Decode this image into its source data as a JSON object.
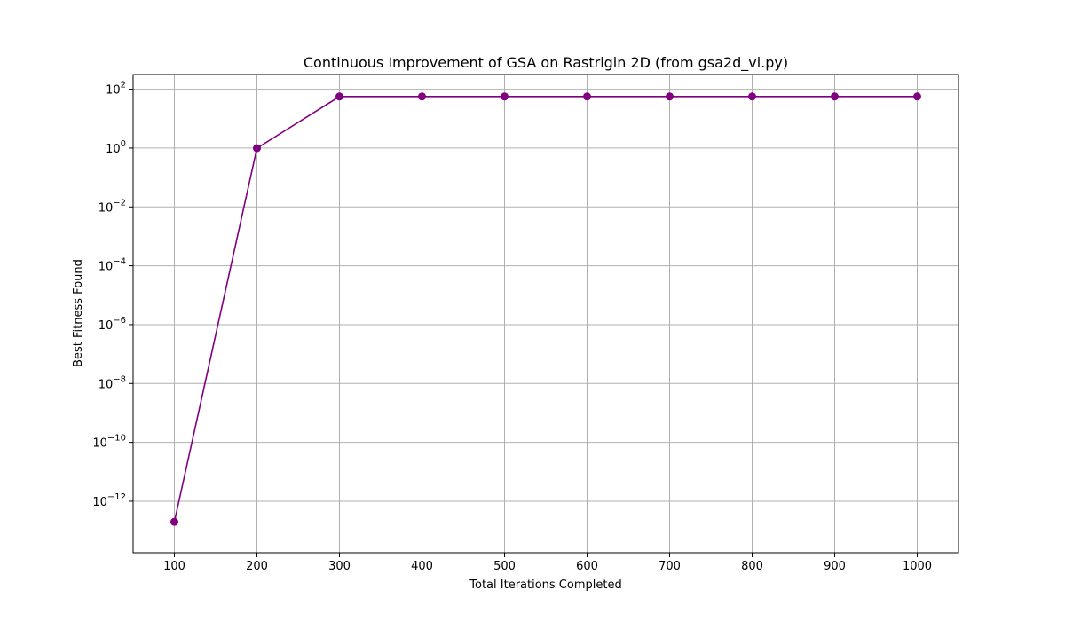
{
  "chart_data": {
    "type": "line",
    "title": "Continuous Improvement of GSA on Rastrigin 2D (from gsa2d_vi.py)",
    "xlabel": "Total Iterations Completed",
    "ylabel": "Best Fitness Found",
    "yscale": "log",
    "xlim": [
      50,
      1050
    ],
    "ylim_exponent": [
      -13.75,
      2.5
    ],
    "grid": true,
    "x_ticks": [
      100,
      200,
      300,
      400,
      500,
      600,
      700,
      800,
      900,
      1000
    ],
    "y_tick_exponents": [
      -12,
      -10,
      -8,
      -6,
      -4,
      -2,
      0,
      2
    ],
    "series": [
      {
        "color": "#800080",
        "marker": "circle",
        "x": [
          100,
          200,
          300,
          400,
          500,
          600,
          700,
          800,
          900,
          1000
        ],
        "y": [
          2e-13,
          0.99,
          56.5,
          56.5,
          56.5,
          56.5,
          56.5,
          56.5,
          56.5,
          56.5
        ]
      }
    ]
  }
}
